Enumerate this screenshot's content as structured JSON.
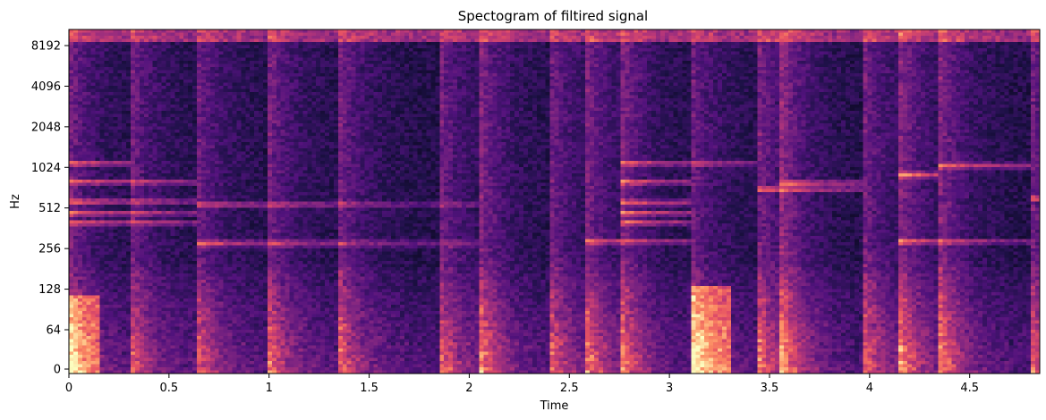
{
  "chart_data": {
    "type": "heatmap",
    "title": "Spectogram of filtired signal",
    "xlabel": "Time",
    "ylabel": "Hz",
    "xlim": [
      0,
      4.85
    ],
    "y_scale": "symlog-base2",
    "x_ticks": [
      {
        "value": 0,
        "label": "0"
      },
      {
        "value": 0.5,
        "label": "0.5"
      },
      {
        "value": 1,
        "label": "1"
      },
      {
        "value": 1.5,
        "label": "1.5"
      },
      {
        "value": 2,
        "label": "2"
      },
      {
        "value": 2.5,
        "label": "2.5"
      },
      {
        "value": 3,
        "label": "3"
      },
      {
        "value": 3.5,
        "label": "3.5"
      },
      {
        "value": 4,
        "label": "4"
      },
      {
        "value": 4.5,
        "label": "4.5"
      }
    ],
    "y_ticks": [
      {
        "value": 0,
        "label": "0"
      },
      {
        "value": 64,
        "label": "64"
      },
      {
        "value": 128,
        "label": "128"
      },
      {
        "value": 256,
        "label": "256"
      },
      {
        "value": 512,
        "label": "512"
      },
      {
        "value": 1024,
        "label": "1024"
      },
      {
        "value": 2048,
        "label": "2048"
      },
      {
        "value": 4096,
        "label": "4096"
      },
      {
        "value": 8192,
        "label": "8192"
      }
    ],
    "colormap": [
      "#000004",
      "#1d1147",
      "#51127c",
      "#822681",
      "#b63679",
      "#e65164",
      "#fb8861",
      "#fec287",
      "#fcfdbf"
    ],
    "onsets": [
      0.0,
      0.3,
      0.63,
      1.0,
      1.35,
      1.85,
      2.05,
      2.4,
      2.57,
      2.75,
      3.1,
      3.45,
      3.55,
      3.97,
      4.15,
      4.35,
      4.8
    ],
    "tonal_lines": [
      {
        "t0": 0.0,
        "t1": 0.63,
        "hz": 400
      },
      {
        "t0": 0.0,
        "t1": 0.63,
        "hz": 470
      },
      {
        "t0": 0.0,
        "t1": 0.63,
        "hz": 570
      },
      {
        "t0": 0.0,
        "t1": 0.63,
        "hz": 800
      },
      {
        "t0": 0.0,
        "t1": 0.3,
        "hz": 1100
      },
      {
        "t0": 0.63,
        "t1": 2.05,
        "hz": 280
      },
      {
        "t0": 0.63,
        "t1": 2.05,
        "hz": 540
      },
      {
        "t0": 2.57,
        "t1": 3.1,
        "hz": 290
      },
      {
        "t0": 2.75,
        "t1": 3.1,
        "hz": 400
      },
      {
        "t0": 2.75,
        "t1": 3.1,
        "hz": 470
      },
      {
        "t0": 2.75,
        "t1": 3.1,
        "hz": 560
      },
      {
        "t0": 2.75,
        "t1": 3.1,
        "hz": 800
      },
      {
        "t0": 2.75,
        "t1": 3.45,
        "hz": 1100
      },
      {
        "t0": 3.45,
        "t1": 3.97,
        "hz": 700
      },
      {
        "t0": 3.55,
        "t1": 3.97,
        "hz": 780
      },
      {
        "t0": 4.15,
        "t1": 4.35,
        "hz": 900
      },
      {
        "t0": 4.35,
        "t1": 4.8,
        "hz": 1050
      },
      {
        "t0": 4.15,
        "t1": 4.8,
        "hz": 290
      },
      {
        "t0": 4.8,
        "t1": 4.85,
        "hz": 600
      }
    ]
  }
}
